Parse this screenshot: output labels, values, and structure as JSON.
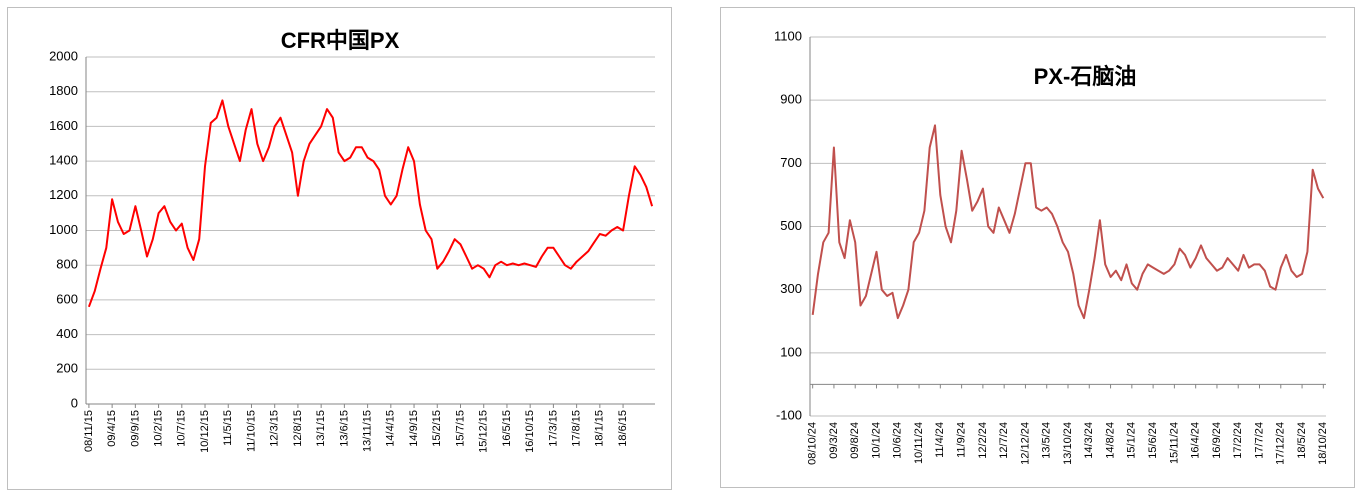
{
  "chart_data": [
    {
      "type": "line",
      "title": "CFR中国PX",
      "categories": [
        "08/11/15",
        null,
        null,
        null,
        "09/4/15",
        null,
        null,
        null,
        "09/9/15",
        null,
        null,
        null,
        "10/2/15",
        null,
        null,
        null,
        "10/7/15",
        null,
        null,
        null,
        "10/12/15",
        null,
        null,
        null,
        "11/5/15",
        null,
        null,
        null,
        "11/10/15",
        null,
        null,
        null,
        "12/3/15",
        null,
        null,
        null,
        "12/8/15",
        null,
        null,
        null,
        "13/1/15",
        null,
        null,
        null,
        "13/6/15",
        null,
        null,
        null,
        "13/11/15",
        null,
        null,
        null,
        "14/4/15",
        null,
        null,
        null,
        "14/9/15",
        null,
        null,
        null,
        "15/2/15",
        null,
        null,
        null,
        "15/7/15",
        null,
        null,
        null,
        "15/12/15",
        null,
        null,
        null,
        "16/5/15",
        null,
        null,
        null,
        "16/10/15",
        null,
        null,
        null,
        "17/3/15",
        null,
        null,
        null,
        "17/8/15",
        null,
        null,
        null,
        "18/1/15",
        null,
        null,
        null,
        "18/6/15",
        null,
        null,
        null,
        null,
        null
      ],
      "series": [
        {
          "name": null,
          "color": "#ff0000",
          "values": [
            560,
            650,
            780,
            900,
            1180,
            1050,
            980,
            1000,
            1140,
            1000,
            850,
            950,
            1100,
            1140,
            1050,
            1000,
            1040,
            900,
            830,
            950,
            1370,
            1620,
            1650,
            1750,
            1600,
            1500,
            1400,
            1580,
            1700,
            1500,
            1400,
            1480,
            1600,
            1650,
            1550,
            1450,
            1200,
            1400,
            1500,
            1550,
            1600,
            1700,
            1650,
            1450,
            1400,
            1420,
            1480,
            1480,
            1420,
            1400,
            1350,
            1200,
            1150,
            1200,
            1350,
            1480,
            1400,
            1150,
            1000,
            950,
            780,
            820,
            880,
            950,
            920,
            850,
            780,
            800,
            780,
            730,
            800,
            820,
            800,
            810,
            800,
            810,
            800,
            790,
            850,
            900,
            900,
            850,
            800,
            780,
            820,
            850,
            880,
            930,
            980,
            970,
            1000,
            1020,
            1000,
            1200,
            1370,
            1320,
            1250,
            1140
          ]
        }
      ],
      "ylim": [
        0,
        2000
      ],
      "yticks": [
        0,
        200,
        400,
        600,
        800,
        1000,
        1200,
        1400,
        1600,
        1800,
        2000
      ],
      "grid": true
    },
    {
      "type": "line",
      "title": "PX-石脑油",
      "categories": [
        "08/10/24",
        null,
        null,
        null,
        "09/3/24",
        null,
        null,
        null,
        "09/8/24",
        null,
        null,
        null,
        "10/1/24",
        null,
        null,
        null,
        "10/6/24",
        null,
        null,
        null,
        "10/11/24",
        null,
        null,
        null,
        "11/4/24",
        null,
        null,
        null,
        "11/9/24",
        null,
        null,
        null,
        "12/2/24",
        null,
        null,
        null,
        "12/7/24",
        null,
        null,
        null,
        "12/12/24",
        null,
        null,
        null,
        "13/5/24",
        null,
        null,
        null,
        "13/10/24",
        null,
        null,
        null,
        "14/3/24",
        null,
        null,
        null,
        "14/8/24",
        null,
        null,
        null,
        "15/1/24",
        null,
        null,
        null,
        "15/6/24",
        null,
        null,
        null,
        "15/11/24",
        null,
        null,
        null,
        "16/4/24",
        null,
        null,
        null,
        "16/9/24",
        null,
        null,
        null,
        "17/2/24",
        null,
        null,
        null,
        "17/7/24",
        null,
        null,
        null,
        "17/12/24",
        null,
        null,
        null,
        "18/5/24",
        null,
        null,
        null,
        "18/10/24"
      ],
      "series": [
        {
          "name": null,
          "color": "#c0504d",
          "values": [
            220,
            350,
            450,
            480,
            750,
            450,
            400,
            520,
            450,
            250,
            280,
            350,
            420,
            300,
            280,
            290,
            210,
            250,
            300,
            450,
            480,
            550,
            750,
            820,
            600,
            500,
            450,
            550,
            740,
            650,
            550,
            580,
            620,
            500,
            480,
            560,
            520,
            480,
            540,
            620,
            700,
            700,
            560,
            550,
            560,
            540,
            500,
            450,
            420,
            350,
            250,
            210,
            300,
            400,
            520,
            380,
            340,
            360,
            330,
            380,
            320,
            300,
            350,
            380,
            370,
            360,
            350,
            360,
            380,
            430,
            410,
            370,
            400,
            440,
            400,
            380,
            360,
            370,
            400,
            380,
            360,
            410,
            370,
            380,
            380,
            360,
            310,
            300,
            370,
            410,
            360,
            340,
            350,
            420,
            680,
            620,
            590
          ]
        }
      ],
      "ylim": [
        -100,
        1100
      ],
      "yticks": [
        -100,
        100,
        300,
        500,
        700,
        900,
        1100
      ],
      "grid": true
    }
  ]
}
